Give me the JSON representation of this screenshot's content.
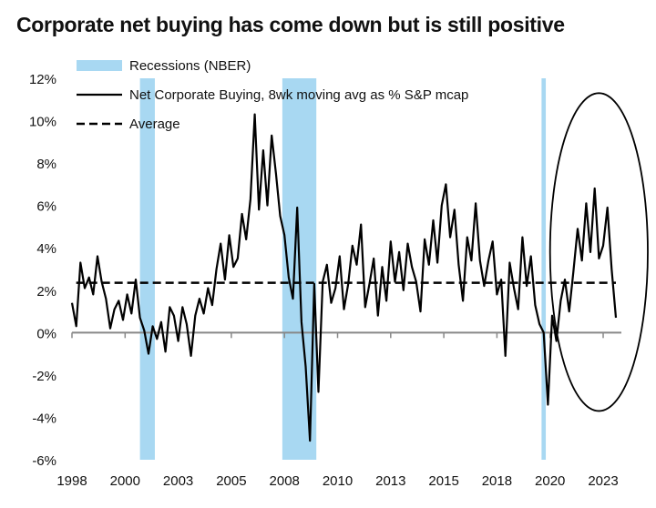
{
  "chart_data": {
    "type": "line",
    "title": "Corporate net buying has come down but is still positive",
    "xlabel": "",
    "ylabel": "",
    "xlim": [
      1998,
      2024.2
    ],
    "ylim": [
      -6,
      12
    ],
    "x_ticks": [
      1998,
      2000.5,
      2003,
      2005.5,
      2008,
      2010.5,
      2013,
      2015.5,
      2018,
      2020.5,
      2023
    ],
    "x_tick_labels": [
      "1998",
      "2000",
      "2003",
      "2005",
      "2008",
      "2010",
      "2013",
      "2015",
      "2018",
      "2020",
      "2023"
    ],
    "y_ticks": [
      12,
      10,
      8,
      6,
      4,
      2,
      0,
      -2,
      -4,
      -6
    ],
    "y_tick_labels": [
      "12%",
      "10%",
      "8%",
      "6%",
      "4%",
      "2%",
      "0%",
      "-2%",
      "-4%",
      "-6%"
    ],
    "recessions": [
      [
        2001.2,
        2001.9
      ],
      [
        2007.9,
        2009.5
      ],
      [
        2020.1,
        2020.3
      ]
    ],
    "average": 2.35,
    "colors": {
      "recession": "#a8d8f2",
      "line": "#000000",
      "average": "#000000",
      "axis": "#888888"
    },
    "legend": [
      {
        "label": "Recessions (NBER)",
        "kind": "band"
      },
      {
        "label": "Net Corporate Buying, 8wk moving avg as % S&P mcap",
        "kind": "line"
      },
      {
        "label": "Average",
        "kind": "dash"
      }
    ],
    "annotation": {
      "type": "ellipse",
      "x_center": 2022.8,
      "y_center": 3.8,
      "x_radius": 2.3,
      "y_radius": 7.5
    },
    "series": [
      {
        "name": "Net Corporate Buying, 8wk moving avg as % S&P mcap",
        "x": [
          1998.0,
          1998.2,
          1998.4,
          1998.6,
          1998.8,
          1999.0,
          1999.2,
          1999.4,
          1999.6,
          1999.8,
          2000.0,
          2000.2,
          2000.4,
          2000.6,
          2000.8,
          2001.0,
          2001.2,
          2001.4,
          2001.6,
          2001.8,
          2002.0,
          2002.2,
          2002.4,
          2002.6,
          2002.8,
          2003.0,
          2003.2,
          2003.4,
          2003.6,
          2003.8,
          2004.0,
          2004.2,
          2004.4,
          2004.6,
          2004.8,
          2005.0,
          2005.2,
          2005.4,
          2005.6,
          2005.8,
          2006.0,
          2006.2,
          2006.4,
          2006.6,
          2006.8,
          2007.0,
          2007.2,
          2007.4,
          2007.6,
          2007.8,
          2008.0,
          2008.2,
          2008.4,
          2008.6,
          2008.8,
          2009.0,
          2009.2,
          2009.4,
          2009.6,
          2009.8,
          2010.0,
          2010.2,
          2010.4,
          2010.6,
          2010.8,
          2011.0,
          2011.2,
          2011.4,
          2011.6,
          2011.8,
          2012.0,
          2012.2,
          2012.4,
          2012.6,
          2012.8,
          2013.0,
          2013.2,
          2013.4,
          2013.6,
          2013.8,
          2014.0,
          2014.2,
          2014.4,
          2014.6,
          2014.8,
          2015.0,
          2015.2,
          2015.4,
          2015.6,
          2015.8,
          2016.0,
          2016.2,
          2016.4,
          2016.6,
          2016.8,
          2017.0,
          2017.2,
          2017.4,
          2017.6,
          2017.8,
          2018.0,
          2018.2,
          2018.4,
          2018.6,
          2018.8,
          2019.0,
          2019.2,
          2019.4,
          2019.6,
          2019.8,
          2020.0,
          2020.2,
          2020.4,
          2020.6,
          2020.8,
          2021.0,
          2021.2,
          2021.4,
          2021.6,
          2021.8,
          2022.0,
          2022.2,
          2022.4,
          2022.6,
          2022.8,
          2023.0,
          2023.2,
          2023.4,
          2023.6
        ],
        "values": [
          1.4,
          0.3,
          3.3,
          2.1,
          2.6,
          1.8,
          3.6,
          2.4,
          1.6,
          0.2,
          1.1,
          1.5,
          0.6,
          1.8,
          0.9,
          2.5,
          0.7,
          0.1,
          -1.0,
          0.3,
          -0.3,
          0.5,
          -0.9,
          1.2,
          0.8,
          -0.4,
          1.2,
          0.4,
          -1.1,
          0.8,
          1.6,
          0.9,
          2.1,
          1.3,
          3.0,
          4.2,
          2.5,
          4.6,
          3.1,
          3.5,
          5.6,
          4.4,
          6.3,
          10.3,
          5.8,
          8.6,
          6.0,
          9.3,
          7.5,
          5.5,
          4.6,
          2.6,
          1.6,
          5.9,
          0.5,
          -1.6,
          -5.1,
          2.3,
          -2.8,
          2.4,
          3.2,
          1.4,
          2.1,
          3.6,
          1.1,
          2.3,
          4.1,
          3.2,
          5.1,
          1.2,
          2.3,
          3.5,
          0.8,
          3.1,
          1.5,
          4.3,
          2.4,
          3.8,
          2.0,
          4.2,
          3.1,
          2.4,
          1.0,
          4.4,
          3.2,
          5.3,
          3.3,
          6.0,
          7.0,
          4.5,
          5.8,
          3.2,
          1.5,
          4.5,
          3.4,
          6.1,
          3.4,
          2.2,
          3.4,
          4.3,
          1.8,
          2.5,
          -1.1,
          3.3,
          2.1,
          1.1,
          4.5,
          2.2,
          3.6,
          1.3,
          0.4,
          0.0,
          -3.4,
          0.8,
          -0.4,
          1.5,
          2.5,
          1.0,
          2.9,
          4.9,
          3.4,
          6.1,
          3.8,
          6.8,
          3.5,
          4.1,
          5.9,
          3.0,
          0.7
        ]
      },
      {
        "name": "Average",
        "x": [
          1998.2,
          2023.6
        ],
        "values": [
          2.35,
          2.35
        ]
      }
    ]
  }
}
